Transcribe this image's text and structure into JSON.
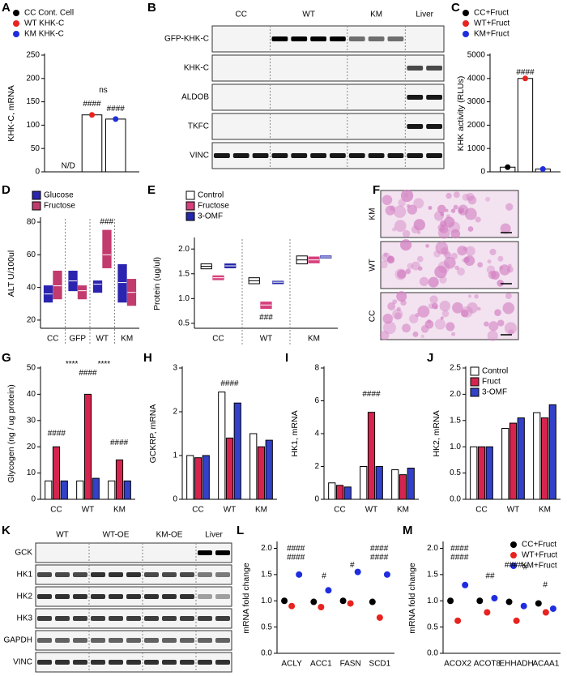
{
  "chart_data": [
    {
      "panel": "A",
      "type": "bar",
      "y_label": "KHK-C, mRNA",
      "categories": [
        null
      ],
      "series": [
        {
          "name": "CC Cont. Cell",
          "color": "#000000",
          "values": [
            null
          ]
        },
        {
          "name": "WT KHK-C",
          "color": "#e8231f",
          "values": [
            122
          ]
        },
        {
          "name": "KM KHK-C",
          "color": "#1f2de0",
          "values": [
            113
          ]
        }
      ],
      "bar_fill": "#ffffff",
      "ylim": [
        0,
        250
      ],
      "yticks": [
        0,
        50,
        100,
        150,
        200,
        250
      ],
      "legend": "top",
      "annotations": [
        "N/D",
        "####",
        "####",
        "ns"
      ]
    },
    {
      "panel": "C",
      "type": "bar",
      "y_label": "KHK activity (RLUs)",
      "categories": [
        null
      ],
      "series": [
        {
          "name": "CC+Fruct",
          "color": "#000000",
          "values": [
            200
          ]
        },
        {
          "name": "WT+Fruct",
          "color": "#e8231f",
          "values": [
            4000
          ]
        },
        {
          "name": "KM+Fruct",
          "color": "#1f2de0",
          "values": [
            120
          ]
        }
      ],
      "bar_fill": "#ffffff",
      "ylim": [
        0,
        5000
      ],
      "yticks": [
        0,
        1000,
        2000,
        3000,
        4000,
        5000
      ],
      "legend": "top",
      "annotations": [
        "####"
      ]
    },
    {
      "panel": "D",
      "type": "range",
      "y_label": "ALT U/100ul",
      "categories": [
        "CC",
        "GFP",
        "WT",
        "KM"
      ],
      "series": [
        {
          "name": "Glucose",
          "color": "#2b24b0",
          "values": [
            [
              31,
              36,
              41
            ],
            [
              38,
              44,
              50
            ],
            [
              37,
              42,
              44
            ],
            [
              31,
              43,
              54
            ]
          ]
        },
        {
          "name": "Fructose",
          "color": "#c23b6e",
          "values": [
            [
              33,
              41,
              50
            ],
            [
              33,
              38,
              41
            ],
            [
              52,
              60,
              75
            ],
            [
              29,
              37,
              45
            ]
          ]
        }
      ],
      "ylim": [
        15,
        82
      ],
      "yticks": [
        20,
        40,
        60,
        80
      ],
      "legend": "top",
      "separators": true,
      "annotations": [
        "###"
      ]
    },
    {
      "panel": "E",
      "type": "range",
      "y_label": "Protein (ug/ul)",
      "categories": [
        "CC",
        "WT",
        "KM"
      ],
      "series": [
        {
          "name": "Control",
          "color": "#ffffff",
          "values": [
            [
              1.6,
              1.65,
              1.7
            ],
            [
              1.3,
              1.36,
              1.42
            ],
            [
              1.7,
              1.78,
              1.86
            ]
          ]
        },
        {
          "name": "Fructose",
          "color": "#d6407c",
          "values": [
            [
              1.38,
              1.42,
              1.46
            ],
            [
              0.8,
              0.87,
              0.93
            ],
            [
              1.72,
              1.78,
              1.84
            ]
          ]
        },
        {
          "name": "3-OMF",
          "color": "#2327a8",
          "values": [
            [
              1.62,
              1.66,
              1.7
            ],
            [
              1.3,
              1.33,
              1.35
            ],
            [
              1.82,
              1.84,
              1.86
            ]
          ]
        }
      ],
      "ylim": [
        0.4,
        2.2
      ],
      "yticks": [
        {
          "value": 0.5,
          "label": "0.5"
        },
        {
          "value": 1,
          "label": "1.0"
        },
        {
          "value": 1.5,
          "label": "1.5"
        },
        {
          "value": 2,
          "label": "2.0"
        }
      ],
      "legend": "top",
      "separators": true,
      "annotations": [
        "###"
      ]
    },
    {
      "panel": "G",
      "type": "bar",
      "y_label": "Glycogen (ng / ug protein)",
      "categories": [
        "CC",
        "WT",
        "KM"
      ],
      "series": [
        {
          "color": "#ffffff",
          "values": [
            7,
            7,
            7
          ]
        },
        {
          "color": "#d6244f",
          "values": [
            20,
            40,
            15
          ]
        },
        {
          "color": "#3340c8",
          "values": [
            7,
            8,
            7
          ]
        }
      ],
      "ylim": [
        0,
        50
      ],
      "yticks": [
        0,
        10,
        20,
        30,
        40,
        50
      ],
      "annotations": [
        "####",
        "####",
        "####",
        "****",
        "****"
      ]
    },
    {
      "panel": "H",
      "type": "bar",
      "y_label": "GCKRP, mRNA",
      "categories": [
        "CC",
        "WT",
        "KM"
      ],
      "series": [
        {
          "color": "#ffffff",
          "values": [
            1.0,
            2.45,
            1.5
          ]
        },
        {
          "color": "#d6244f",
          "values": [
            0.95,
            1.4,
            1.2
          ]
        },
        {
          "color": "#3340c8",
          "values": [
            1.0,
            2.2,
            1.35
          ]
        }
      ],
      "ylim": [
        0,
        3
      ],
      "yticks": [
        0,
        1,
        2,
        3
      ],
      "annotations": [
        "####"
      ]
    },
    {
      "panel": "I",
      "type": "bar",
      "y_label": "HK1, mRNA",
      "categories": [
        "CC",
        "WT",
        "KM"
      ],
      "series": [
        {
          "color": "#ffffff",
          "values": [
            1.0,
            2.0,
            1.8
          ]
        },
        {
          "color": "#d6244f",
          "values": [
            0.85,
            5.3,
            1.5
          ]
        },
        {
          "color": "#3340c8",
          "values": [
            0.75,
            2.0,
            1.9
          ]
        }
      ],
      "ylim": [
        0,
        8
      ],
      "yticks": [
        0,
        2,
        4,
        6,
        8
      ],
      "annotations": [
        "####"
      ]
    },
    {
      "panel": "J",
      "type": "bar",
      "y_label": "HK2, mRNA",
      "categories": [
        "CC",
        "WT",
        "KM"
      ],
      "series": [
        {
          "name": "Control",
          "color": "#ffffff",
          "values": [
            1.0,
            1.35,
            1.65
          ]
        },
        {
          "name": "Fruct",
          "color": "#d6244f",
          "values": [
            1.0,
            1.45,
            1.55
          ]
        },
        {
          "name": "3-OMF",
          "color": "#3340c8",
          "values": [
            1.0,
            1.55,
            1.8
          ]
        }
      ],
      "ylim": [
        0,
        2.5
      ],
      "yticks": [
        {
          "value": 0,
          "label": "0.0"
        },
        {
          "value": 0.5,
          "label": "0.5"
        },
        {
          "value": 1,
          "label": "1.0"
        },
        {
          "value": 1.5,
          "label": "1.5"
        },
        {
          "value": 2,
          "label": "2.0"
        },
        {
          "value": 2.5,
          "label": "2.5"
        }
      ],
      "legend": "top-left",
      "annotations": []
    },
    {
      "panel": "L",
      "type": "dot",
      "y_label": "mRNA fold change",
      "categories": [
        "ACLY",
        "ACC1",
        "FASN",
        "SCD1"
      ],
      "series": [
        {
          "color": "#000000",
          "values": [
            1.0,
            0.98,
            1.0,
            0.98
          ]
        },
        {
          "color": "#e8231f",
          "values": [
            0.9,
            0.88,
            0.95,
            0.68
          ]
        },
        {
          "color": "#1f2de0",
          "values": [
            1.5,
            1.2,
            1.55,
            1.5
          ]
        }
      ],
      "ylim": [
        0,
        2.1
      ],
      "yticks": [
        {
          "value": 0,
          "label": "0.0"
        },
        {
          "value": 0.5,
          "label": "0.5"
        },
        {
          "value": 1,
          "label": "1.0"
        },
        {
          "value": 1.5,
          "label": "1.5"
        },
        {
          "value": 2,
          "label": "2.0"
        }
      ],
      "annotations": [
        "####",
        "####",
        "#",
        "#",
        "####",
        "####"
      ]
    },
    {
      "panel": "M",
      "type": "dot",
      "y_label": "mRNA fold change",
      "categories": [
        "ACOX2",
        "ACOT8",
        "EHHADH",
        "ACAA1"
      ],
      "series": [
        {
          "name": "CC+Fruct",
          "color": "#000000",
          "values": [
            1.0,
            1.0,
            0.98,
            0.95
          ]
        },
        {
          "name": "WT+Fruct",
          "color": "#e8231f",
          "values": [
            0.62,
            0.78,
            0.62,
            0.78
          ]
        },
        {
          "name": "KM+Fruct",
          "color": "#1f2de0",
          "values": [
            1.3,
            1.05,
            0.9,
            0.85
          ]
        }
      ],
      "ylim": [
        0,
        2.1
      ],
      "yticks": [
        {
          "value": 0,
          "label": "0.0"
        },
        {
          "value": 0.5,
          "label": "0.5"
        },
        {
          "value": 1,
          "label": "1.0"
        },
        {
          "value": 1.5,
          "label": "1.5"
        },
        {
          "value": 2,
          "label": "2.0"
        }
      ],
      "legend": "top-right",
      "annotations": [
        "####",
        "####",
        "##",
        "####",
        "#",
        "#"
      ]
    }
  ],
  "blots": [
    {
      "panel": "B",
      "columns": [
        "CC",
        "WT",
        "KM",
        "Liver"
      ],
      "rows": [
        "GFP-KHK-C",
        "KHK-C",
        "ALDOB",
        "TKFC",
        "VINC"
      ]
    },
    {
      "panel": "K",
      "columns": [
        "WT",
        "WT-OE",
        "KM-OE",
        "Liver"
      ],
      "rows": [
        "GCK",
        "HK1",
        "HK2",
        "HK3",
        "GAPDH",
        "VINC"
      ]
    }
  ],
  "histology": {
    "panel": "F",
    "labels": [
      "KM",
      "WT",
      "CC"
    ]
  }
}
